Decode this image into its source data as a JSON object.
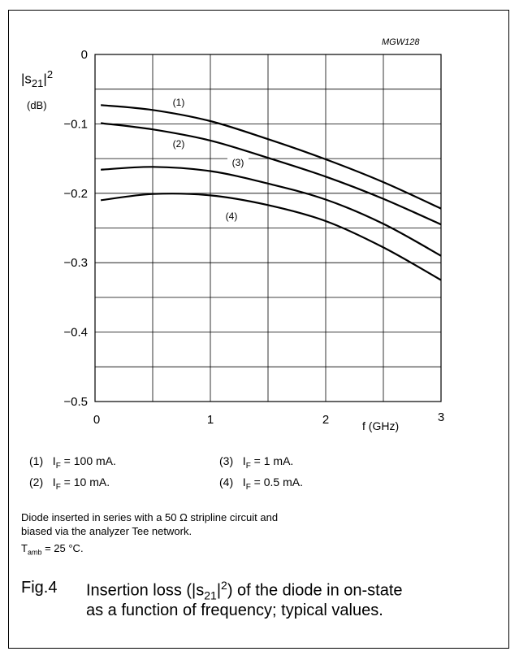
{
  "chart_data": {
    "type": "line",
    "code": "MGW128",
    "ylabel_main": "|s",
    "ylabel_sub": "21",
    "ylabel_sup": "2",
    "yunit": "(dB)",
    "xlabel": "f (GHz)",
    "xlim": [
      0,
      3
    ],
    "ylim": [
      -0.5,
      0
    ],
    "xticks": [
      0,
      1,
      2,
      3
    ],
    "yticks": [
      0,
      -0.1,
      -0.2,
      -0.3,
      -0.4,
      -0.5
    ],
    "ytick_labels": [
      "0",
      "−0.1",
      "−0.2",
      "−0.3",
      "−0.4",
      "−0.5"
    ],
    "grid": true,
    "series": [
      {
        "name": "(1)",
        "x": [
          0.05,
          0.5,
          1.0,
          1.5,
          2.0,
          2.5,
          3.0
        ],
        "y": [
          -0.073,
          -0.08,
          -0.096,
          -0.122,
          -0.151,
          -0.184,
          -0.222
        ]
      },
      {
        "name": "(2)",
        "x": [
          0.05,
          0.5,
          1.0,
          1.5,
          2.0,
          2.5,
          3.0
        ],
        "y": [
          -0.099,
          -0.108,
          -0.124,
          -0.149,
          -0.176,
          -0.208,
          -0.245
        ]
      },
      {
        "name": "(3)",
        "x": [
          0.05,
          0.5,
          1.0,
          1.5,
          2.0,
          2.5,
          3.0
        ],
        "y": [
          -0.166,
          -0.162,
          -0.168,
          -0.186,
          -0.209,
          -0.244,
          -0.29
        ]
      },
      {
        "name": "(4)",
        "x": [
          0.05,
          0.5,
          1.0,
          1.5,
          2.0,
          2.5,
          3.0
        ],
        "y": [
          -0.21,
          -0.201,
          -0.203,
          -0.217,
          -0.24,
          -0.278,
          -0.325
        ]
      }
    ]
  },
  "legend": [
    {
      "num": "(1)",
      "sym": "I",
      "sub": "F",
      "val": " = 100 mA."
    },
    {
      "num": "(3)",
      "sym": "I",
      "sub": "F",
      "val": " = 1 mA."
    },
    {
      "num": "(2)",
      "sym": "I",
      "sub": "F",
      "val": " = 10 mA."
    },
    {
      "num": "(4)",
      "sym": "I",
      "sub": "F",
      "val": " = 0.5 mA."
    }
  ],
  "notes": {
    "line1": "Diode inserted in series with a 50 Ω stripline circuit and",
    "line2": "biased via the analyzer Tee network.",
    "tamb_sym": "T",
    "tamb_sub": "amb",
    "tamb_val": " = 25 °C."
  },
  "figure": {
    "number": "Fig.4",
    "caption_a": "Insertion loss (|s",
    "caption_sub": "21",
    "caption_b": "|",
    "caption_sup": "2",
    "caption_c": ") of the diode in on-state",
    "caption_line2": "as a function of frequency; typical values."
  }
}
